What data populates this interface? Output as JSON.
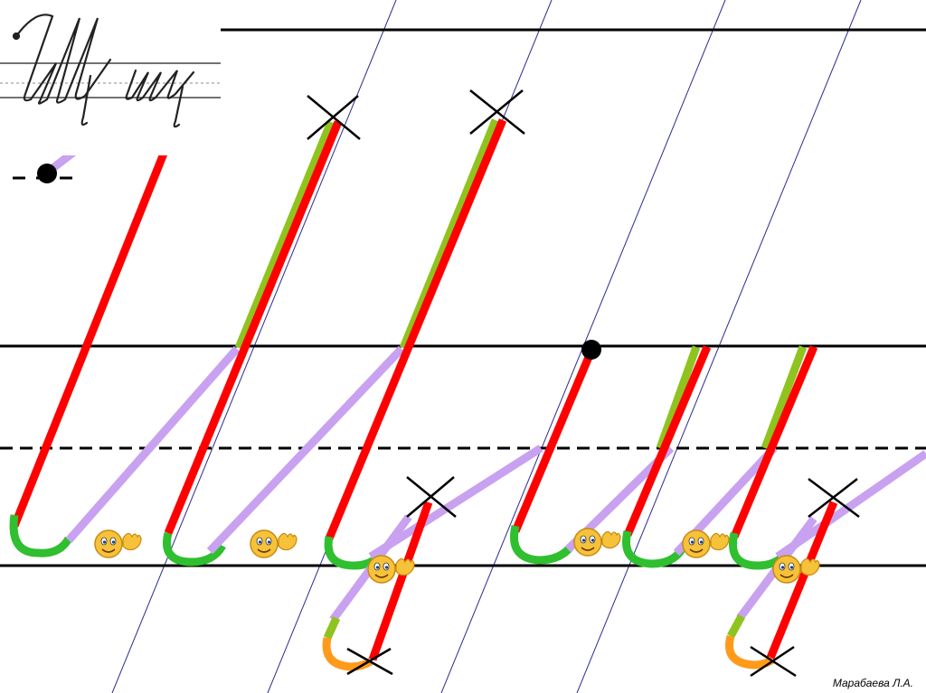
{
  "slide": {
    "author": "Марабаева Л.А.",
    "sample_image": "cursive-sample-shch-image"
  },
  "colors": {
    "background": "#ffffff",
    "ruling": "#000000",
    "slant": "#2b2b8f",
    "main_stroke": "#ff0000",
    "connector": "#c8a2f0",
    "upstroke_overlay": "#8fc31f",
    "loop_bottom": "#2fbf2f",
    "start_hook": "#0000cc",
    "tail_loop": "#ff9a1a",
    "dot": "#000000"
  },
  "icons": {
    "smiley": "smiley-waving-icon",
    "cross": "cross-mark-icon",
    "dot": "start-dot-icon"
  }
}
